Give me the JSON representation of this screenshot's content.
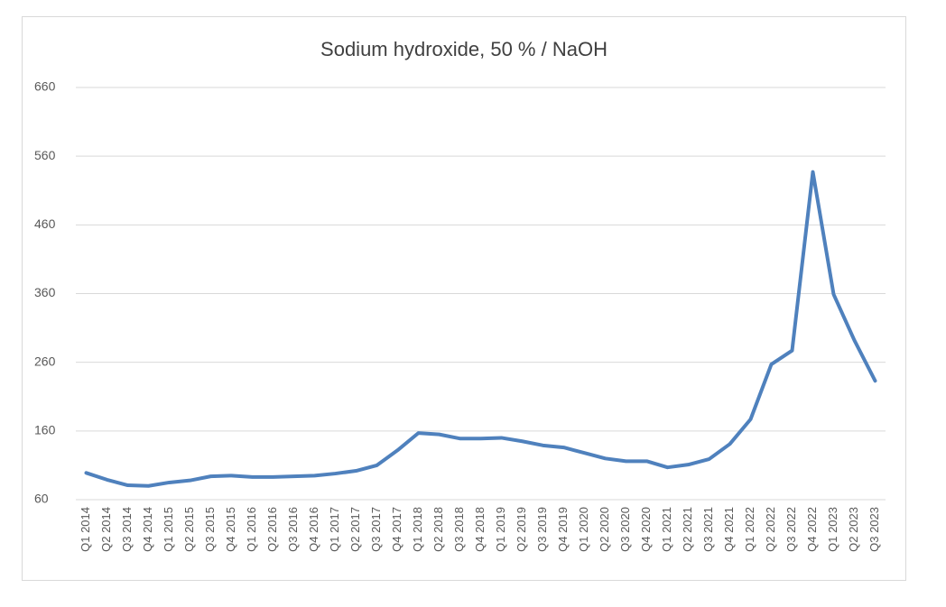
{
  "chart_data": {
    "type": "line",
    "title": "Sodium hydroxide, 50 % / NaOH",
    "categories": [
      "Q1 2014",
      "Q2 2014",
      "Q3 2014",
      "Q4 2014",
      "Q1 2015",
      "Q2 2015",
      "Q3 2015",
      "Q4 2015",
      "Q1 2016",
      "Q2 2016",
      "Q3 2016",
      "Q4 2016",
      "Q1 2017",
      "Q2 2017",
      "Q3 2017",
      "Q4 2017",
      "Q1 2018",
      "Q2 2018",
      "Q3 2018",
      "Q4 2018",
      "Q1 2019",
      "Q2 2019",
      "Q3 2019",
      "Q4 2019",
      "Q1 2020",
      "Q2 2020",
      "Q3 2020",
      "Q4 2020",
      "Q1 2021",
      "Q2 2021",
      "Q3 2021",
      "Q4 2021",
      "Q1 2022",
      "Q2 2022",
      "Q3 2022",
      "Q4 2022",
      "Q1 2023",
      "Q2 2023",
      "Q3 2023"
    ],
    "series": [
      {
        "name": "NaOH",
        "color": "#4f81bd",
        "values": [
          99,
          89,
          81,
          80,
          85,
          88,
          94,
          95,
          93,
          93,
          94,
          95,
          98,
          102,
          110,
          132,
          157,
          155,
          149,
          149,
          150,
          145,
          139,
          136,
          128,
          120,
          116,
          116,
          107,
          111,
          119,
          141,
          177,
          257,
          277,
          537,
          359,
          292,
          233
        ]
      }
    ],
    "ylim": [
      60,
      660
    ],
    "yticks": [
      60,
      160,
      260,
      360,
      460,
      560,
      660
    ],
    "grid": true
  }
}
